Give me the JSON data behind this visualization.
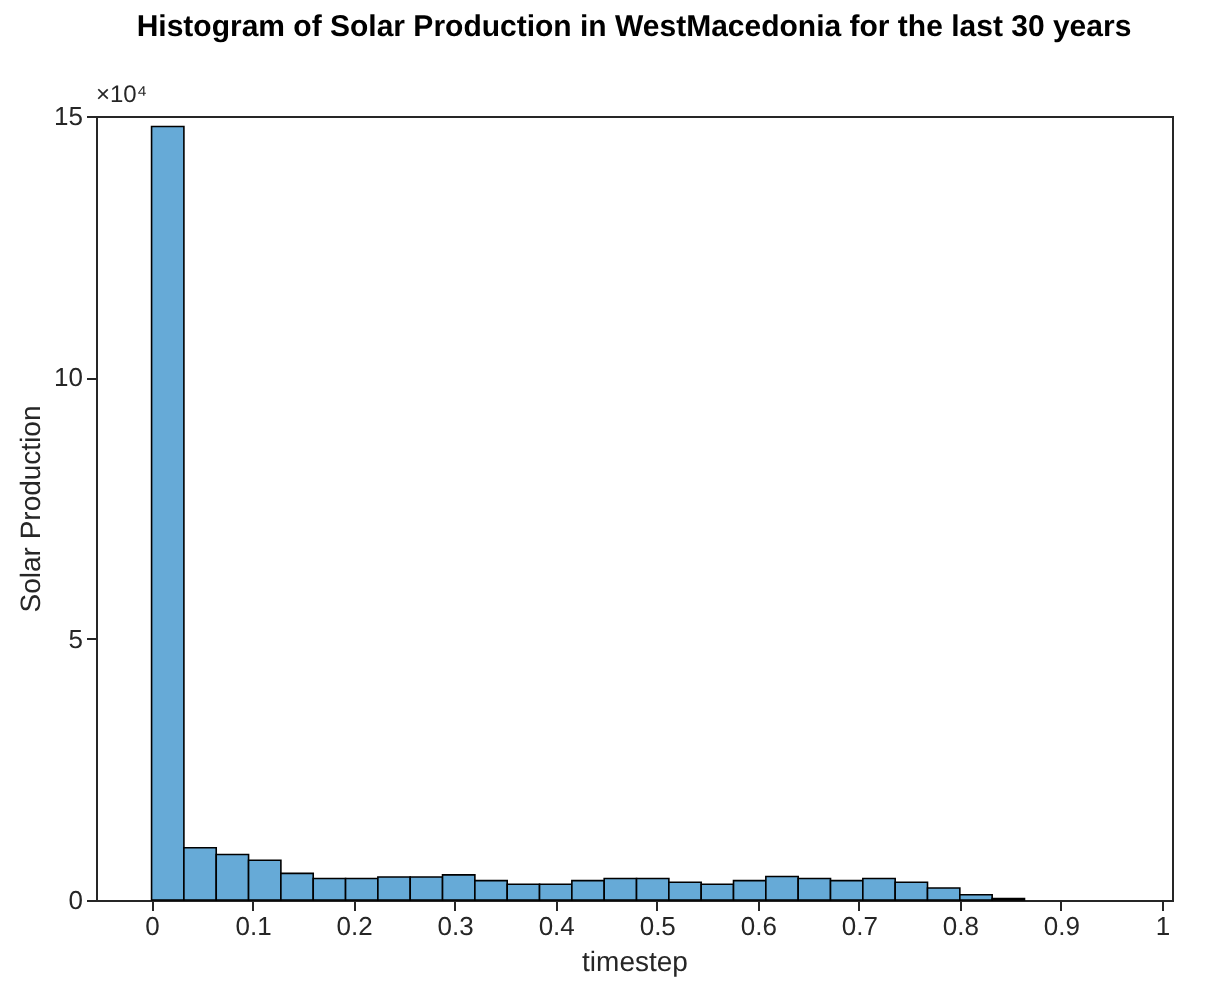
{
  "chart_data": {
    "type": "histogram",
    "title": "Histogram of Solar Production in WestMacedonia for the last 30 years",
    "xlabel": "timestep",
    "ylabel": "Solar Production",
    "annotations": [
      "×10⁴"
    ],
    "bins": [
      0,
      0.032,
      0.064,
      0.096,
      0.128,
      0.16,
      0.192,
      0.224,
      0.256,
      0.288,
      0.32,
      0.352,
      0.384,
      0.416,
      0.448,
      0.48,
      0.512,
      0.544,
      0.576,
      0.608,
      0.64,
      0.672,
      0.704,
      0.736,
      0.768,
      0.8,
      0.832,
      0.864
    ],
    "values": [
      14.8,
      1.0,
      0.87,
      0.76,
      0.51,
      0.41,
      0.41,
      0.44,
      0.44,
      0.48,
      0.37,
      0.3,
      0.3,
      0.37,
      0.41,
      0.41,
      0.34,
      0.3,
      0.37,
      0.45,
      0.41,
      0.37,
      0.41,
      0.34,
      0.23,
      0.1,
      0.03
    ],
    "color": "#66aad7",
    "xlim": [
      -0.055,
      1.01
    ],
    "xticks": [
      0,
      0.1,
      0.2,
      0.3,
      0.4,
      0.5,
      0.6,
      0.7,
      0.8,
      0.9,
      1
    ],
    "ylim": [
      0,
      15
    ],
    "yticks": [
      0,
      5,
      10,
      15
    ],
    "grid": false
  }
}
